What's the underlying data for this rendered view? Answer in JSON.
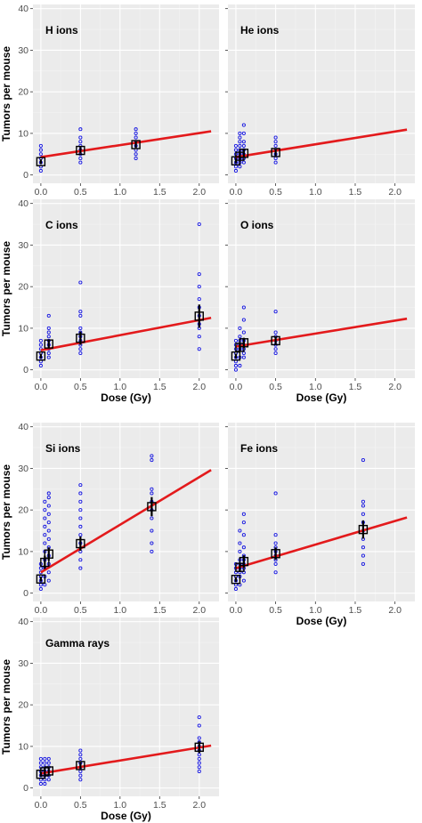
{
  "figure": {
    "ylabel": "Tumors per mouse",
    "xlabel": "Dose (Gy)"
  },
  "colors": {
    "panel_bg": "#ebebeb",
    "grid_major": "#ffffff",
    "grid_minor": "#f4f4f4",
    "fit_line": "#e31a1c",
    "points": "#1515e0",
    "mean_marker": "#000000",
    "text": "#222222"
  },
  "chart_data": [
    {
      "type": "scatter",
      "title": "H ions",
      "xlim": [
        -0.1,
        2.25
      ],
      "ylim": [
        -2,
        41
      ],
      "xticks": [
        "0.0",
        "0.5",
        "1.0",
        "1.5",
        "2.0"
      ],
      "yticks": [
        "0",
        "10",
        "20",
        "30",
        "40"
      ],
      "points": [
        [
          0,
          1
        ],
        [
          0,
          2
        ],
        [
          0,
          3
        ],
        [
          0,
          4
        ],
        [
          0,
          5
        ],
        [
          0,
          6
        ],
        [
          0,
          7
        ],
        [
          0.5,
          3
        ],
        [
          0.5,
          4
        ],
        [
          0.5,
          5
        ],
        [
          0.5,
          6
        ],
        [
          0.5,
          7
        ],
        [
          0.5,
          8
        ],
        [
          0.5,
          9
        ],
        [
          0.5,
          11
        ],
        [
          1.2,
          4
        ],
        [
          1.2,
          5
        ],
        [
          1.2,
          6
        ],
        [
          1.2,
          7
        ],
        [
          1.2,
          8
        ],
        [
          1.2,
          9
        ],
        [
          1.2,
          10
        ],
        [
          1.2,
          11
        ]
      ],
      "means": [
        {
          "x": 0,
          "y": 3.2,
          "err": 0.6
        },
        {
          "x": 0.5,
          "y": 5.9,
          "err": 0.8
        },
        {
          "x": 1.2,
          "y": 7.3,
          "err": 0.8
        }
      ],
      "fit": {
        "x": [
          0,
          2.15
        ],
        "y": [
          4.3,
          10.5
        ]
      }
    },
    {
      "type": "scatter",
      "title": "He ions",
      "xlim": [
        -0.1,
        2.25
      ],
      "ylim": [
        -2,
        41
      ],
      "xticks": [
        "0.0",
        "0.5",
        "1.0",
        "1.5",
        "2.0"
      ],
      "yticks": [
        "0",
        "10",
        "20",
        "30",
        "40"
      ],
      "points": [
        [
          0,
          1
        ],
        [
          0,
          2
        ],
        [
          0,
          3
        ],
        [
          0,
          4
        ],
        [
          0,
          5
        ],
        [
          0,
          6
        ],
        [
          0,
          7
        ],
        [
          0.05,
          2
        ],
        [
          0.05,
          3
        ],
        [
          0.05,
          4
        ],
        [
          0.05,
          5
        ],
        [
          0.05,
          6
        ],
        [
          0.05,
          7
        ],
        [
          0.05,
          8
        ],
        [
          0.05,
          9
        ],
        [
          0.05,
          10
        ],
        [
          0.1,
          3
        ],
        [
          0.1,
          4
        ],
        [
          0.1,
          5
        ],
        [
          0.1,
          6
        ],
        [
          0.1,
          7
        ],
        [
          0.1,
          8
        ],
        [
          0.1,
          10
        ],
        [
          0.1,
          12
        ],
        [
          0.5,
          3
        ],
        [
          0.5,
          4
        ],
        [
          0.5,
          5
        ],
        [
          0.5,
          6
        ],
        [
          0.5,
          7
        ],
        [
          0.5,
          8
        ],
        [
          0.5,
          9
        ]
      ],
      "means": [
        {
          "x": 0,
          "y": 3.4,
          "err": 0.6
        },
        {
          "x": 0.05,
          "y": 4.5,
          "err": 0.7
        },
        {
          "x": 0.1,
          "y": 5.2,
          "err": 0.9
        },
        {
          "x": 0.5,
          "y": 5.4,
          "err": 0.8
        }
      ],
      "fit": {
        "x": [
          0,
          2.15
        ],
        "y": [
          4.3,
          10.9
        ]
      }
    },
    {
      "type": "scatter",
      "title": "C ions",
      "xlim": [
        -0.1,
        2.25
      ],
      "ylim": [
        -2,
        41
      ],
      "xticks": [
        "0.0",
        "0.5",
        "1.0",
        "1.5",
        "2.0"
      ],
      "yticks": [
        "0",
        "10",
        "20",
        "30",
        "40"
      ],
      "points": [
        [
          0,
          1
        ],
        [
          0,
          2
        ],
        [
          0,
          3
        ],
        [
          0,
          4
        ],
        [
          0,
          5
        ],
        [
          0,
          6
        ],
        [
          0,
          7
        ],
        [
          0.1,
          3
        ],
        [
          0.1,
          4
        ],
        [
          0.1,
          5
        ],
        [
          0.1,
          6
        ],
        [
          0.1,
          7
        ],
        [
          0.1,
          8
        ],
        [
          0.1,
          9
        ],
        [
          0.1,
          10
        ],
        [
          0.1,
          13
        ],
        [
          0.5,
          4
        ],
        [
          0.5,
          5
        ],
        [
          0.5,
          6
        ],
        [
          0.5,
          7
        ],
        [
          0.5,
          8
        ],
        [
          0.5,
          9
        ],
        [
          0.5,
          10
        ],
        [
          0.5,
          13
        ],
        [
          0.5,
          14
        ],
        [
          0.5,
          21
        ],
        [
          2,
          5
        ],
        [
          2,
          8
        ],
        [
          2,
          10
        ],
        [
          2,
          11
        ],
        [
          2,
          13
        ],
        [
          2,
          15
        ],
        [
          2,
          17
        ],
        [
          2,
          20
        ],
        [
          2,
          23
        ],
        [
          2,
          35
        ]
      ],
      "means": [
        {
          "x": 0,
          "y": 3.3,
          "err": 0.6
        },
        {
          "x": 0.1,
          "y": 6.2,
          "err": 0.9
        },
        {
          "x": 0.5,
          "y": 7.6,
          "err": 1.6
        },
        {
          "x": 2,
          "y": 12.9,
          "err": 2.8
        }
      ],
      "fit": {
        "x": [
          0,
          2.15
        ],
        "y": [
          4.7,
          12.5
        ]
      }
    },
    {
      "type": "scatter",
      "title": "O ions",
      "xlim": [
        -0.1,
        2.25
      ],
      "ylim": [
        -2,
        41
      ],
      "xticks": [
        "0.0",
        "0.5",
        "1.0",
        "1.5",
        "2.0"
      ],
      "yticks": [
        "0",
        "10",
        "20",
        "30",
        "40"
      ],
      "points": [
        [
          0,
          0
        ],
        [
          0,
          1
        ],
        [
          0,
          2
        ],
        [
          0,
          3
        ],
        [
          0,
          4
        ],
        [
          0,
          5
        ],
        [
          0,
          6
        ],
        [
          0,
          7
        ],
        [
          0.05,
          1
        ],
        [
          0.05,
          3
        ],
        [
          0.05,
          5
        ],
        [
          0.05,
          6
        ],
        [
          0.05,
          7
        ],
        [
          0.05,
          8
        ],
        [
          0.05,
          10
        ],
        [
          0.1,
          3
        ],
        [
          0.1,
          4
        ],
        [
          0.1,
          5
        ],
        [
          0.1,
          6
        ],
        [
          0.1,
          7
        ],
        [
          0.1,
          9
        ],
        [
          0.1,
          12
        ],
        [
          0.1,
          15
        ],
        [
          0.5,
          4
        ],
        [
          0.5,
          5
        ],
        [
          0.5,
          6
        ],
        [
          0.5,
          7
        ],
        [
          0.5,
          8
        ],
        [
          0.5,
          9
        ],
        [
          0.5,
          14
        ]
      ],
      "means": [
        {
          "x": 0,
          "y": 3.3,
          "err": 0.6
        },
        {
          "x": 0.05,
          "y": 5.4,
          "err": 1.0
        },
        {
          "x": 0.1,
          "y": 6.5,
          "err": 1.2
        },
        {
          "x": 0.5,
          "y": 7.0,
          "err": 0.9
        }
      ],
      "fit": {
        "x": [
          0,
          2.15
        ],
        "y": [
          5.6,
          12.3
        ]
      }
    },
    {
      "type": "scatter",
      "title": "Si ions",
      "xlim": [
        -0.1,
        2.25
      ],
      "ylim": [
        -2,
        41
      ],
      "xticks": [
        "0.0",
        "0.5",
        "1.0",
        "1.5",
        "2.0"
      ],
      "yticks": [
        "0",
        "10",
        "20",
        "30",
        "40"
      ],
      "points": [
        [
          0,
          1
        ],
        [
          0,
          2
        ],
        [
          0,
          3
        ],
        [
          0,
          4
        ],
        [
          0,
          5
        ],
        [
          0,
          6
        ],
        [
          0,
          7
        ],
        [
          0.05,
          2
        ],
        [
          0.05,
          4
        ],
        [
          0.05,
          6
        ],
        [
          0.05,
          8
        ],
        [
          0.05,
          10
        ],
        [
          0.05,
          12
        ],
        [
          0.05,
          14
        ],
        [
          0.05,
          16
        ],
        [
          0.05,
          18
        ],
        [
          0.05,
          20
        ],
        [
          0.05,
          22
        ],
        [
          0.1,
          3
        ],
        [
          0.1,
          5
        ],
        [
          0.1,
          7
        ],
        [
          0.1,
          9
        ],
        [
          0.1,
          11
        ],
        [
          0.1,
          13
        ],
        [
          0.1,
          15
        ],
        [
          0.1,
          17
        ],
        [
          0.1,
          19
        ],
        [
          0.1,
          21
        ],
        [
          0.1,
          23
        ],
        [
          0.1,
          24
        ],
        [
          0.5,
          6
        ],
        [
          0.5,
          8
        ],
        [
          0.5,
          10
        ],
        [
          0.5,
          12
        ],
        [
          0.5,
          14
        ],
        [
          0.5,
          16
        ],
        [
          0.5,
          18
        ],
        [
          0.5,
          20
        ],
        [
          0.5,
          22
        ],
        [
          0.5,
          24
        ],
        [
          0.5,
          26
        ],
        [
          1.4,
          10
        ],
        [
          1.4,
          12
        ],
        [
          1.4,
          15
        ],
        [
          1.4,
          18
        ],
        [
          1.4,
          20
        ],
        [
          1.4,
          22
        ],
        [
          1.4,
          24
        ],
        [
          1.4,
          25
        ],
        [
          1.4,
          32
        ],
        [
          1.4,
          33
        ]
      ],
      "means": [
        {
          "x": 0,
          "y": 3.4,
          "err": 0.6
        },
        {
          "x": 0.05,
          "y": 7.4,
          "err": 1.6
        },
        {
          "x": 0.1,
          "y": 9.4,
          "err": 1.6
        },
        {
          "x": 0.5,
          "y": 11.9,
          "err": 1.7
        },
        {
          "x": 1.4,
          "y": 20.8,
          "err": 2.3
        }
      ],
      "fit": {
        "x": [
          0,
          2.15
        ],
        "y": [
          5.0,
          29.6
        ]
      }
    },
    {
      "type": "scatter",
      "title": "Fe ions",
      "xlim": [
        -0.1,
        2.25
      ],
      "ylim": [
        -2,
        41
      ],
      "xticks": [
        "0.0",
        "0.5",
        "1.0",
        "1.5",
        "2.0"
      ],
      "yticks": [
        "0",
        "10",
        "20",
        "30",
        "40"
      ],
      "points": [
        [
          0,
          1
        ],
        [
          0,
          2
        ],
        [
          0,
          3
        ],
        [
          0,
          4
        ],
        [
          0,
          5
        ],
        [
          0,
          6
        ],
        [
          0,
          7
        ],
        [
          0.05,
          2
        ],
        [
          0.05,
          4
        ],
        [
          0.05,
          5
        ],
        [
          0.05,
          6
        ],
        [
          0.05,
          7
        ],
        [
          0.05,
          8
        ],
        [
          0.05,
          10
        ],
        [
          0.05,
          12
        ],
        [
          0.05,
          15
        ],
        [
          0.1,
          3
        ],
        [
          0.1,
          5
        ],
        [
          0.1,
          6
        ],
        [
          0.1,
          7
        ],
        [
          0.1,
          8
        ],
        [
          0.1,
          9
        ],
        [
          0.1,
          11
        ],
        [
          0.1,
          14
        ],
        [
          0.1,
          17
        ],
        [
          0.1,
          19
        ],
        [
          0.5,
          5
        ],
        [
          0.5,
          7
        ],
        [
          0.5,
          8
        ],
        [
          0.5,
          9
        ],
        [
          0.5,
          10
        ],
        [
          0.5,
          11
        ],
        [
          0.5,
          12
        ],
        [
          0.5,
          14
        ],
        [
          0.5,
          24
        ],
        [
          1.6,
          7
        ],
        [
          1.6,
          9
        ],
        [
          1.6,
          11
        ],
        [
          1.6,
          13
        ],
        [
          1.6,
          15
        ],
        [
          1.6,
          17
        ],
        [
          1.6,
          19
        ],
        [
          1.6,
          21
        ],
        [
          1.6,
          22
        ],
        [
          1.6,
          32
        ]
      ],
      "means": [
        {
          "x": 0,
          "y": 3.3,
          "err": 0.6
        },
        {
          "x": 0.05,
          "y": 6.2,
          "err": 1.1
        },
        {
          "x": 0.1,
          "y": 7.6,
          "err": 1.5
        },
        {
          "x": 0.5,
          "y": 9.5,
          "err": 1.5
        },
        {
          "x": 1.6,
          "y": 15.3,
          "err": 2.2
        }
      ],
      "fit": {
        "x": [
          0,
          2.15
        ],
        "y": [
          6.0,
          18.2
        ]
      }
    },
    {
      "type": "scatter",
      "title": "Gamma rays",
      "xlim": [
        -0.1,
        2.25
      ],
      "ylim": [
        -2,
        41
      ],
      "xticks": [
        "0.0",
        "0.5",
        "1.0",
        "1.5",
        "2.0"
      ],
      "yticks": [
        "0",
        "10",
        "20",
        "30",
        "40"
      ],
      "points": [
        [
          0,
          1
        ],
        [
          0,
          2
        ],
        [
          0,
          3
        ],
        [
          0,
          4
        ],
        [
          0,
          5
        ],
        [
          0,
          6
        ],
        [
          0,
          7
        ],
        [
          0.05,
          1
        ],
        [
          0.05,
          2
        ],
        [
          0.05,
          3
        ],
        [
          0.05,
          4
        ],
        [
          0.05,
          5
        ],
        [
          0.05,
          6
        ],
        [
          0.05,
          7
        ],
        [
          0.1,
          2
        ],
        [
          0.1,
          3
        ],
        [
          0.1,
          4
        ],
        [
          0.1,
          5
        ],
        [
          0.1,
          6
        ],
        [
          0.1,
          7
        ],
        [
          0.5,
          2
        ],
        [
          0.5,
          3
        ],
        [
          0.5,
          4
        ],
        [
          0.5,
          5
        ],
        [
          0.5,
          6
        ],
        [
          0.5,
          7
        ],
        [
          0.5,
          8
        ],
        [
          0.5,
          9
        ],
        [
          2,
          4
        ],
        [
          2,
          5
        ],
        [
          2,
          6
        ],
        [
          2,
          7
        ],
        [
          2,
          8
        ],
        [
          2,
          9
        ],
        [
          2,
          10
        ],
        [
          2,
          11
        ],
        [
          2,
          12
        ],
        [
          2,
          15
        ],
        [
          2,
          17
        ]
      ],
      "means": [
        {
          "x": 0,
          "y": 3.3,
          "err": 0.6
        },
        {
          "x": 0.05,
          "y": 3.9,
          "err": 0.7
        },
        {
          "x": 0.1,
          "y": 4.1,
          "err": 0.7
        },
        {
          "x": 0.5,
          "y": 5.4,
          "err": 0.8
        },
        {
          "x": 2,
          "y": 9.8,
          "err": 1.4
        }
      ],
      "fit": {
        "x": [
          0,
          2.15
        ],
        "y": [
          3.5,
          10.2
        ]
      }
    }
  ]
}
